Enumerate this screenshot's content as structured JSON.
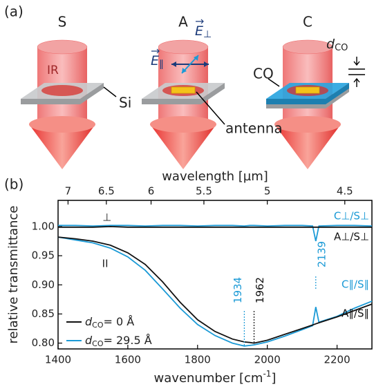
{
  "panel_a": {
    "label": "(a)",
    "columns": [
      "S",
      "A",
      "C"
    ],
    "ir": "IR",
    "si": "Si",
    "antenna": "antenna",
    "co": "CO",
    "e_par": {
      "symbol": "E",
      "sub": "∥"
    },
    "e_perp": {
      "symbol": "E",
      "sub": "⊥"
    },
    "d_co": {
      "symbol": "d",
      "sub": "CO"
    }
  },
  "chart_data": {
    "type": "line",
    "panel_label": "(b)",
    "x_label": {
      "text": "wavenumber [cm",
      "sup": "-1",
      "end": "]"
    },
    "y_label": "relative transmittance",
    "x2_label": "wavelength [µm]",
    "xlim": [
      1400,
      2300
    ],
    "xticks": [
      1400,
      1600,
      1800,
      2000,
      2200
    ],
    "x2ticks": [
      7,
      6.5,
      6,
      5.5,
      5,
      4.5
    ],
    "ylim": [
      0.79,
      1.045
    ],
    "yticks": [
      {
        "value": 0.8,
        "label": "0.80"
      },
      0.85,
      {
        "value": 0.9,
        "label": "0.90"
      },
      0.95,
      {
        "value": 1,
        "label": "1.00"
      }
    ],
    "x": [
      1400,
      1450,
      1500,
      1550,
      1600,
      1650,
      1700,
      1750,
      1800,
      1850,
      1900,
      1934,
      1950,
      1962,
      2000,
      2050,
      2100,
      2130,
      2139,
      2148,
      2200,
      2250,
      2300
    ],
    "series": [
      {
        "name": "C⊥/S⊥",
        "color": "#1b9ad6",
        "values": [
          1.002,
          1.002,
          1.001,
          1.002,
          1.002,
          1.001,
          1.002,
          1.002,
          1.001,
          1.002,
          1.002,
          1.001,
          1.002,
          1.002,
          1.001,
          1.002,
          1.002,
          1.001,
          0.975,
          1.001,
          1.002,
          1.002,
          1.001
        ]
      },
      {
        "name": "A⊥/S⊥",
        "color": "#111111",
        "values": [
          0.999,
          0.999,
          0.999,
          1.0,
          0.999,
          0.999,
          0.999,
          0.999,
          0.999,
          0.999,
          0.999,
          0.999,
          0.999,
          0.999,
          0.999,
          0.999,
          0.999,
          0.999,
          0.999,
          0.999,
          0.999,
          0.999,
          0.999
        ]
      },
      {
        "name": "C∥/S∥",
        "color": "#1b9ad6",
        "values": [
          0.982,
          0.977,
          0.972,
          0.963,
          0.948,
          0.925,
          0.893,
          0.86,
          0.832,
          0.813,
          0.8,
          0.795,
          0.796,
          0.797,
          0.802,
          0.812,
          0.823,
          0.83,
          0.862,
          0.836,
          0.846,
          0.86,
          0.872
        ]
      },
      {
        "name": "A∥/S∥",
        "color": "#111111",
        "values": [
          0.982,
          0.979,
          0.975,
          0.968,
          0.955,
          0.935,
          0.905,
          0.87,
          0.84,
          0.82,
          0.807,
          0.802,
          0.801,
          0.8,
          0.805,
          0.815,
          0.825,
          0.831,
          0.833,
          0.835,
          0.845,
          0.856,
          0.867
        ]
      }
    ],
    "markers": [
      1934,
      1962,
      2139
    ],
    "perp_label": "⊥",
    "par_label": "II",
    "legend": [
      {
        "symbol": "d",
        "sub": "CO",
        "text": "= 0 Å"
      },
      {
        "symbol": "d",
        "sub": "CO",
        "text": "= 29.5 Å"
      }
    ]
  }
}
